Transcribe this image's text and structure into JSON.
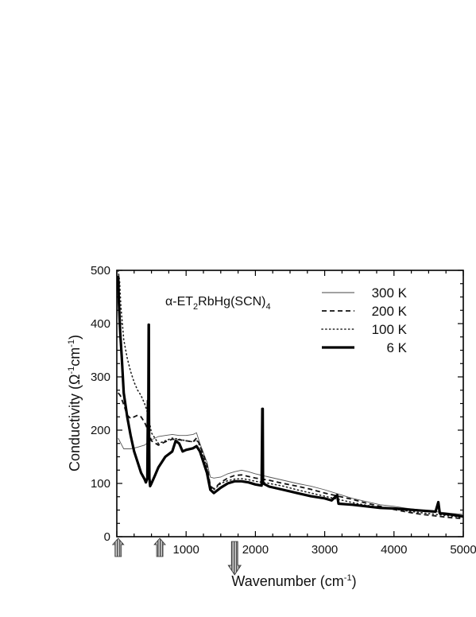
{
  "chart_data": {
    "type": "line",
    "title": "",
    "annotation": {
      "prefix": "α-ET",
      "sub1": "2",
      "middle": "RbHg(SCN)",
      "sub2": "4"
    },
    "xlabel": {
      "main": "Wavenumber (cm",
      "sup": "-1",
      "end": ")"
    },
    "ylabel": {
      "main": "Conductivity (Ω",
      "sup1": "-1",
      "mid": "cm",
      "sup2": "-1",
      "end": ")"
    },
    "xlim": [
      0,
      5000
    ],
    "ylim": [
      0,
      500
    ],
    "x_ticks": [
      1000,
      2000,
      3000,
      4000,
      5000
    ],
    "x_tick_labels": [
      "1000",
      "2000",
      "3000",
      "4000",
      "5000"
    ],
    "y_ticks": [
      0,
      100,
      200,
      300,
      400,
      500
    ],
    "y_tick_labels": [
      "0",
      "100",
      "200",
      "300",
      "400",
      "500"
    ],
    "legend_position": "top-right",
    "grid": false,
    "arrows_x": [
      20,
      620,
      1700
    ],
    "series": [
      {
        "name": "300 K",
        "style": "thin",
        "points": [
          [
            20,
            185
          ],
          [
            60,
            175
          ],
          [
            100,
            165
          ],
          [
            200,
            165
          ],
          [
            300,
            168
          ],
          [
            400,
            172
          ],
          [
            500,
            182
          ],
          [
            600,
            188
          ],
          [
            700,
            190
          ],
          [
            800,
            192
          ],
          [
            900,
            190
          ],
          [
            1000,
            190
          ],
          [
            1100,
            192
          ],
          [
            1150,
            195
          ],
          [
            1200,
            175
          ],
          [
            1300,
            140
          ],
          [
            1350,
            112
          ],
          [
            1400,
            110
          ],
          [
            1500,
            112
          ],
          [
            1600,
            118
          ],
          [
            1700,
            122
          ],
          [
            1800,
            125
          ],
          [
            1900,
            122
          ],
          [
            2000,
            118
          ],
          [
            2200,
            112
          ],
          [
            2400,
            106
          ],
          [
            2600,
            100
          ],
          [
            2800,
            95
          ],
          [
            3000,
            88
          ],
          [
            3200,
            80
          ],
          [
            3400,
            72
          ],
          [
            3600,
            66
          ],
          [
            3800,
            60
          ],
          [
            4000,
            57
          ],
          [
            4200,
            53
          ],
          [
            4400,
            50
          ],
          [
            4600,
            47
          ],
          [
            4800,
            44
          ],
          [
            5000,
            42
          ]
        ]
      },
      {
        "name": "200 K",
        "style": "dashed",
        "points": [
          [
            20,
            270
          ],
          [
            50,
            265
          ],
          [
            100,
            248
          ],
          [
            150,
            228
          ],
          [
            200,
            222
          ],
          [
            250,
            225
          ],
          [
            300,
            228
          ],
          [
            350,
            225
          ],
          [
            400,
            215
          ],
          [
            450,
            200
          ],
          [
            500,
            180
          ],
          [
            600,
            172
          ],
          [
            700,
            178
          ],
          [
            800,
            183
          ],
          [
            900,
            182
          ],
          [
            1000,
            180
          ],
          [
            1100,
            178
          ],
          [
            1150,
            185
          ],
          [
            1200,
            172
          ],
          [
            1300,
            135
          ],
          [
            1350,
            95
          ],
          [
            1400,
            90
          ],
          [
            1500,
            102
          ],
          [
            1600,
            110
          ],
          [
            1700,
            115
          ],
          [
            1800,
            116
          ],
          [
            1900,
            113
          ],
          [
            2000,
            110
          ],
          [
            2200,
            106
          ],
          [
            2400,
            100
          ],
          [
            2600,
            95
          ],
          [
            2800,
            89
          ],
          [
            3000,
            82
          ],
          [
            3200,
            76
          ],
          [
            3400,
            70
          ],
          [
            3600,
            63
          ],
          [
            3800,
            57
          ],
          [
            4000,
            51
          ],
          [
            4200,
            46
          ],
          [
            4400,
            42
          ],
          [
            4600,
            39
          ],
          [
            4800,
            36
          ],
          [
            5000,
            34
          ]
        ]
      },
      {
        "name": "100 K",
        "style": "dotted",
        "points": [
          [
            20,
            500
          ],
          [
            40,
            480
          ],
          [
            60,
            430
          ],
          [
            80,
            400
          ],
          [
            100,
            370
          ],
          [
            150,
            335
          ],
          [
            200,
            310
          ],
          [
            250,
            290
          ],
          [
            300,
            275
          ],
          [
            350,
            265
          ],
          [
            400,
            250
          ],
          [
            450,
            230
          ],
          [
            500,
            195
          ],
          [
            600,
            175
          ],
          [
            700,
            180
          ],
          [
            800,
            185
          ],
          [
            900,
            183
          ],
          [
            1000,
            180
          ],
          [
            1100,
            178
          ],
          [
            1150,
            182
          ],
          [
            1200,
            170
          ],
          [
            1300,
            130
          ],
          [
            1350,
            92
          ],
          [
            1400,
            88
          ],
          [
            1500,
            100
          ],
          [
            1600,
            105
          ],
          [
            1700,
            108
          ],
          [
            1800,
            109
          ],
          [
            1900,
            107
          ],
          [
            2000,
            104
          ],
          [
            2200,
            100
          ],
          [
            2400,
            95
          ],
          [
            2600,
            88
          ],
          [
            2800,
            82
          ],
          [
            3000,
            76
          ],
          [
            3200,
            70
          ],
          [
            3400,
            64
          ],
          [
            3600,
            59
          ],
          [
            3800,
            55
          ],
          [
            4000,
            52
          ],
          [
            4200,
            48
          ],
          [
            4400,
            45
          ],
          [
            4600,
            42
          ],
          [
            4800,
            39
          ],
          [
            5000,
            36
          ]
        ]
      },
      {
        "name": "6 K",
        "style": "thick",
        "points": [
          [
            20,
            490
          ],
          [
            30,
            440
          ],
          [
            50,
            380
          ],
          [
            70,
            340
          ],
          [
            100,
            270
          ],
          [
            150,
            225
          ],
          [
            200,
            190
          ],
          [
            250,
            160
          ],
          [
            300,
            140
          ],
          [
            350,
            120
          ],
          [
            400,
            108
          ],
          [
            420,
            102
          ],
          [
            440,
            110
          ],
          [
            450,
            255
          ],
          [
            455,
            250
          ],
          [
            460,
            398
          ],
          [
            462,
            398
          ],
          [
            465,
            230
          ],
          [
            470,
            110
          ],
          [
            480,
            95
          ],
          [
            500,
            100
          ],
          [
            550,
            115
          ],
          [
            600,
            130
          ],
          [
            700,
            150
          ],
          [
            800,
            160
          ],
          [
            850,
            180
          ],
          [
            900,
            175
          ],
          [
            950,
            160
          ],
          [
            1000,
            163
          ],
          [
            1100,
            166
          ],
          [
            1150,
            170
          ],
          [
            1200,
            160
          ],
          [
            1300,
            120
          ],
          [
            1350,
            88
          ],
          [
            1400,
            82
          ],
          [
            1500,
            92
          ],
          [
            1600,
            100
          ],
          [
            1700,
            104
          ],
          [
            1800,
            104
          ],
          [
            1900,
            102
          ],
          [
            2000,
            98
          ],
          [
            2090,
            96
          ],
          [
            2100,
            240
          ],
          [
            2105,
            240
          ],
          [
            2110,
            100
          ],
          [
            2200,
            94
          ],
          [
            2400,
            88
          ],
          [
            2600,
            82
          ],
          [
            2800,
            76
          ],
          [
            3000,
            72
          ],
          [
            3100,
            68
          ],
          [
            3180,
            78
          ],
          [
            3200,
            62
          ],
          [
            3400,
            60
          ],
          [
            3600,
            57
          ],
          [
            3800,
            54
          ],
          [
            4000,
            53
          ],
          [
            4200,
            51
          ],
          [
            4400,
            49
          ],
          [
            4600,
            47
          ],
          [
            4640,
            65
          ],
          [
            4660,
            44
          ],
          [
            4800,
            42
          ],
          [
            5000,
            38
          ]
        ]
      }
    ]
  }
}
